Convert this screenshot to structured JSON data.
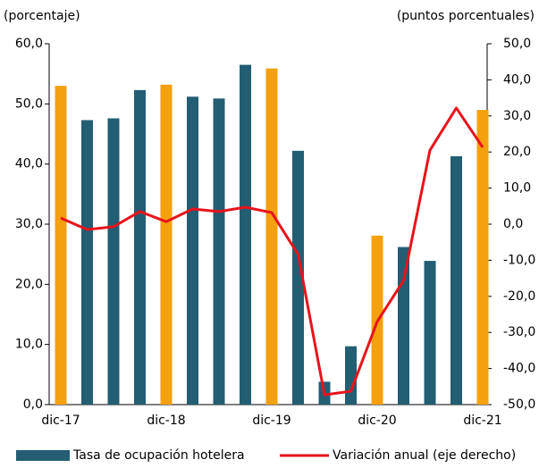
{
  "chart_data": {
    "type": "bar",
    "y_label": "(porcentaje)",
    "y2_label": "(puntos porcentuales)",
    "categories": [
      "dic-17",
      null,
      null,
      null,
      "dic-18",
      null,
      null,
      null,
      "dic-19",
      null,
      null,
      null,
      "dic-20",
      null,
      null,
      null,
      "dic-21"
    ],
    "series": [
      {
        "name": "Tasa de ocupación hotelera",
        "type": "bar",
        "color": "#235e73",
        "colors": [
          "#f5a00f",
          "#235e73",
          "#235e73",
          "#235e73",
          "#f5a00f",
          "#235e73",
          "#235e73",
          "#235e73",
          "#f5a00f",
          "#235e73",
          "#235e73",
          "#235e73",
          "#f5a00f",
          "#235e73",
          "#235e73",
          "#235e73",
          "#f5a00f"
        ],
        "values": [
          53.0,
          47.3,
          47.6,
          52.3,
          53.2,
          51.2,
          50.9,
          56.5,
          55.9,
          42.2,
          3.8,
          9.7,
          28.1,
          26.2,
          23.9,
          41.3,
          49.0
        ]
      },
      {
        "name": "Variación anual (eje derecho)",
        "type": "line",
        "axis": "y2",
        "color": "#e8131b",
        "values": [
          1.7,
          -1.5,
          -0.7,
          3.5,
          0.7,
          4.2,
          3.5,
          4.7,
          3.2,
          -8.4,
          -47.3,
          -46.3,
          -27.0,
          -15.6,
          20.5,
          32.2,
          21.3
        ]
      }
    ],
    "ylim": [
      0,
      60
    ],
    "yticks": [
      {
        "value": 0,
        "label": "0,0"
      },
      {
        "value": 10,
        "label": "10,0"
      },
      {
        "value": 20,
        "label": "20,0"
      },
      {
        "value": 30,
        "label": "30,0"
      },
      {
        "value": 40,
        "label": "40,0"
      },
      {
        "value": 50,
        "label": "50,0"
      },
      {
        "value": 60,
        "label": "60,0"
      }
    ],
    "y2lim": [
      -50,
      50
    ],
    "y2ticks": [
      {
        "value": -50,
        "label": "-50,0"
      },
      {
        "value": -40,
        "label": "-40,0"
      },
      {
        "value": -30,
        "label": "-30,0"
      },
      {
        "value": -20,
        "label": "-20,0"
      },
      {
        "value": -10,
        "label": "-10,0"
      },
      {
        "value": 0,
        "label": "0,0"
      },
      {
        "value": 10,
        "label": "10,0"
      },
      {
        "value": 20,
        "label": "20,0"
      },
      {
        "value": 30,
        "label": "30,0"
      },
      {
        "value": 40,
        "label": "40,0"
      },
      {
        "value": 50,
        "label": "50,0"
      }
    ],
    "grid": false
  }
}
